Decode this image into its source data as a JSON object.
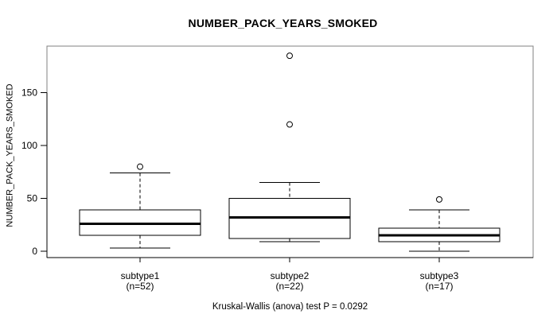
{
  "title": "NUMBER_PACK_YEARS_SMOKED",
  "caption": "Kruskal-Wallis (anova) test P = 0.0292",
  "chart_data": {
    "type": "boxplot",
    "title": "NUMBER_PACK_YEARS_SMOKED",
    "ylabel": "NUMBER_PACK_YEARS_SMOKED",
    "xlabel": "",
    "yticks": [
      0,
      50,
      100,
      150
    ],
    "ylim": [
      -6,
      194
    ],
    "grid": false,
    "categories": [
      {
        "label": "subtype1",
        "sublabel": "(n=52)",
        "n": 52
      },
      {
        "label": "subtype2",
        "sublabel": "(n=22)",
        "n": 22
      },
      {
        "label": "subtype3",
        "sublabel": "(n=17)",
        "n": 17
      }
    ],
    "groups": [
      {
        "name": "subtype1",
        "whisker_low": 3,
        "q1": 15,
        "median": 26,
        "q3": 39,
        "whisker_high": 74,
        "outliers": [
          80
        ]
      },
      {
        "name": "subtype2",
        "whisker_low": 9,
        "q1": 12,
        "median": 32,
        "q3": 50,
        "whisker_high": 65,
        "outliers": [
          120,
          185
        ]
      },
      {
        "name": "subtype3",
        "whisker_low": 0,
        "q1": 9,
        "median": 15,
        "q3": 22,
        "whisker_high": 39,
        "outliers": [
          49
        ]
      }
    ],
    "stat_test": "Kruskal-Wallis (anova) test",
    "p_value": 0.0292,
    "colors": {
      "box_fill": "#ffffff",
      "box_stroke": "#000000",
      "median_stroke": "#000000",
      "frame_stroke": "#808080",
      "axis_stroke": "#000000",
      "text": "#000000",
      "background": "#ffffff"
    }
  }
}
